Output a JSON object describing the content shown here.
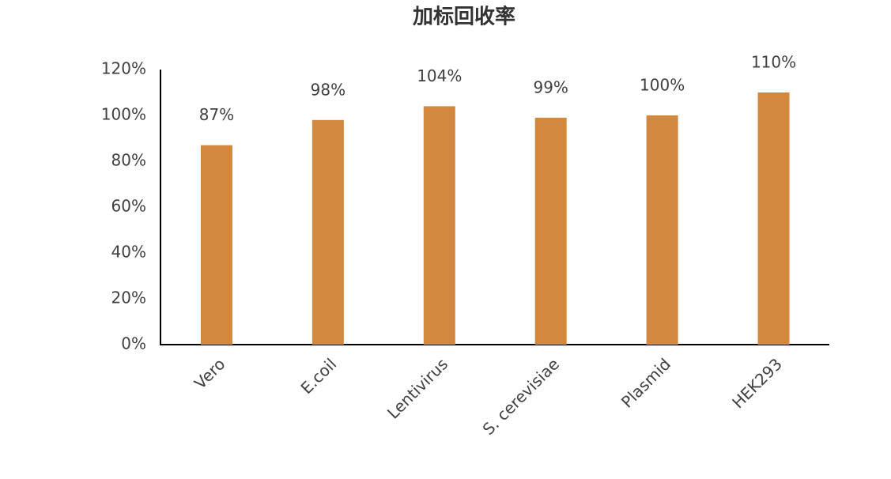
{
  "chart_data": {
    "type": "bar",
    "title": "加标回收率",
    "categories": [
      "Vero",
      "E.coil",
      "Lentivirus",
      "S. cerevisiae",
      "Plasmid",
      "HEK293"
    ],
    "values": [
      87,
      98,
      104,
      99,
      100,
      110
    ],
    "value_labels": [
      "87%",
      "98%",
      "104%",
      "99%",
      "100%",
      "110%"
    ],
    "color": "#d2883f",
    "ylim": [
      0,
      120
    ],
    "yticks": [
      {
        "value": 0,
        "label": "0%"
      },
      {
        "value": 20,
        "label": "20%"
      },
      {
        "value": 40,
        "label": "40%"
      },
      {
        "value": 60,
        "label": "60%"
      },
      {
        "value": 80,
        "label": "80%"
      },
      {
        "value": 100,
        "label": "100%"
      },
      {
        "value": 120,
        "label": "120%"
      }
    ],
    "grid": false
  }
}
